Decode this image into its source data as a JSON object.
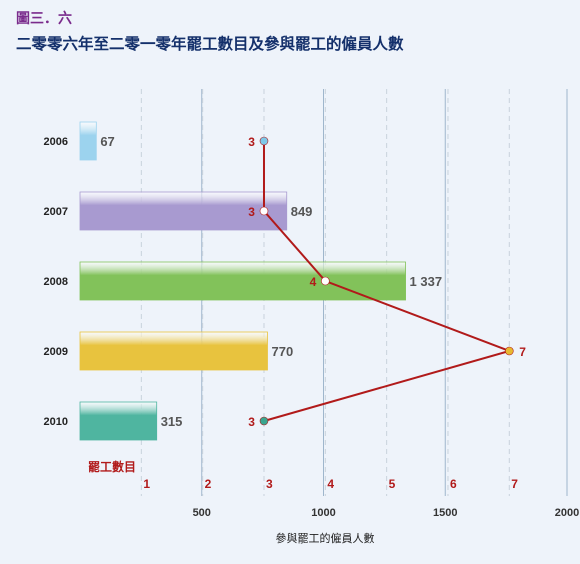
{
  "figure": {
    "label": "圖三．六",
    "title": "二零零六年至二零一零年罷工數目及參與罷工的僱員人數"
  },
  "colors": {
    "bar_2006": "#9cd3ee",
    "bar_2007": "#a89ad0",
    "bar_2008": "#82c25a",
    "bar_2009": "#e8c33e",
    "bar_2010": "#4fb5a0",
    "line": "#b11a1a",
    "grid_solid": "#9fb6cc",
    "grid_dashed": "#c8d2dc",
    "background": "#eef3fa"
  },
  "chart_data": {
    "type": "bar",
    "orientation": "horizontal",
    "categories": [
      "2006",
      "2007",
      "2008",
      "2009",
      "2010"
    ],
    "series": [
      {
        "values": [
          67,
          849,
          1337,
          770,
          315
        ],
        "value_labels": [
          "67",
          "849",
          "1 337",
          "770",
          "315"
        ]
      },
      {
        "name": "罷工數目",
        "type": "line",
        "values": [
          3,
          3,
          4,
          7,
          3
        ],
        "point_colors": [
          "#7ec8e8",
          "#ffffff",
          "#ffffff",
          "#e8b830",
          "#3aa58f"
        ]
      }
    ],
    "xlabel": "參與罷工的僱員人數",
    "xlim": [
      0,
      2000
    ],
    "xticks": [
      "500",
      "1000",
      "1500",
      "2000"
    ],
    "secondary_xlim": [
      0,
      8
    ],
    "secondary_xticks": [
      "1",
      "2",
      "3",
      "4",
      "5",
      "6",
      "7"
    ],
    "secondary_label": "罷工數目",
    "grid": true
  }
}
